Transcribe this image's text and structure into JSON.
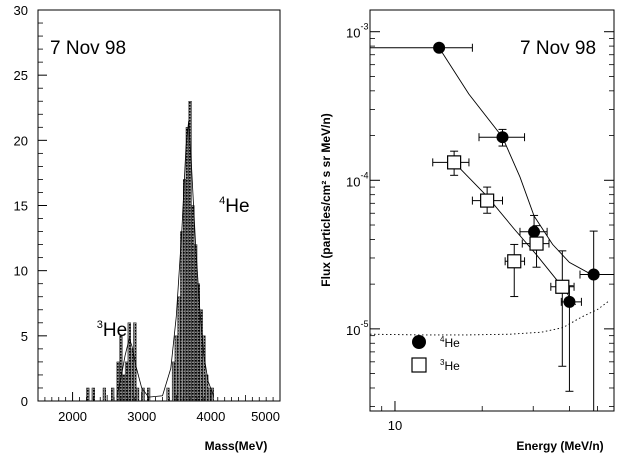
{
  "chart_data": [
    {
      "type": "bar",
      "subtype": "histogram",
      "annotation": "7 Nov 98",
      "xlabel": "Mass(MeV)",
      "ylabel": "",
      "xlim": [
        1500,
        5000
      ],
      "ylim": [
        0,
        30
      ],
      "xticks": [
        2000,
        3000,
        4000,
        5000
      ],
      "yticks": [
        0,
        5,
        10,
        15,
        20,
        25,
        30
      ],
      "bin_width": 40,
      "bins": [
        {
          "x": 2200,
          "count": 1
        },
        {
          "x": 2280,
          "count": 1
        },
        {
          "x": 2440,
          "count": 1
        },
        {
          "x": 2560,
          "count": 1
        },
        {
          "x": 2640,
          "count": 3
        },
        {
          "x": 2680,
          "count": 5
        },
        {
          "x": 2720,
          "count": 2
        },
        {
          "x": 2760,
          "count": 3
        },
        {
          "x": 2800,
          "count": 6
        },
        {
          "x": 2840,
          "count": 4
        },
        {
          "x": 2880,
          "count": 6
        },
        {
          "x": 2920,
          "count": 1
        },
        {
          "x": 3000,
          "count": 1
        },
        {
          "x": 3080,
          "count": 1
        },
        {
          "x": 3360,
          "count": 1
        },
        {
          "x": 3440,
          "count": 3
        },
        {
          "x": 3480,
          "count": 5
        },
        {
          "x": 3520,
          "count": 8
        },
        {
          "x": 3560,
          "count": 13
        },
        {
          "x": 3600,
          "count": 17
        },
        {
          "x": 3640,
          "count": 21
        },
        {
          "x": 3680,
          "count": 23
        },
        {
          "x": 3720,
          "count": 15
        },
        {
          "x": 3760,
          "count": 12
        },
        {
          "x": 3800,
          "count": 9
        },
        {
          "x": 3840,
          "count": 7
        },
        {
          "x": 3880,
          "count": 5
        },
        {
          "x": 3920,
          "count": 2
        },
        {
          "x": 3960,
          "count": 1
        },
        {
          "x": 4000,
          "count": 1
        }
      ],
      "fit": [
        [
          2640,
          0.3
        ],
        [
          2700,
          1.8
        ],
        [
          2760,
          3.5
        ],
        [
          2820,
          4.8
        ],
        [
          2860,
          4.2
        ],
        [
          2920,
          2.6
        ],
        [
          3000,
          1.0
        ],
        [
          3100,
          0.3
        ],
        [
          3300,
          0.4
        ],
        [
          3420,
          2.5
        ],
        [
          3500,
          6.5
        ],
        [
          3580,
          13
        ],
        [
          3640,
          19.5
        ],
        [
          3680,
          21.5
        ],
        [
          3720,
          18
        ],
        [
          3780,
          12
        ],
        [
          3840,
          7
        ],
        [
          3900,
          3.5
        ],
        [
          3960,
          1.5
        ],
        [
          4040,
          0.4
        ]
      ],
      "labels": [
        {
          "pre": "3",
          "text": "He",
          "x": 2350,
          "y": 5.0
        },
        {
          "pre": "4",
          "text": "He",
          "x": 4120,
          "y": 14.5
        }
      ]
    },
    {
      "type": "scatter",
      "annotation": "7 Nov 98",
      "xlabel": "Energy (MeV/n)",
      "ylabel": "Flux (particles/cm² s sr MeV/n)",
      "xscale": "log",
      "yscale": "log",
      "xlim": [
        8.2,
        57
      ],
      "ylim": [
        2.8e-06,
        0.0014
      ],
      "yticks": [
        {
          "value": 1e-05,
          "base": "10",
          "exp": "-5"
        },
        {
          "value": 0.0001,
          "base": "10",
          "exp": "-4"
        },
        {
          "value": 0.001,
          "base": "10",
          "exp": "-3"
        }
      ],
      "xticks": [
        {
          "value": 10,
          "label": "10"
        }
      ],
      "series": [
        {
          "name": "He",
          "name_pre": "4",
          "marker": "filled-circle",
          "points": [
            {
              "x": 14.2,
              "y": 0.00078,
              "xerr": [
                8.2,
                18.5
              ],
              "yerr": [
                0.00078,
                0.00078
              ]
            },
            {
              "x": 23.5,
              "y": 0.000195,
              "xerr": [
                19.5,
                28.0
              ],
              "yerr": [
                0.00017,
                0.00022
              ]
            },
            {
              "x": 30.2,
              "y": 4.5e-05,
              "xerr": [
                27.0,
                33.5
              ],
              "yerr": [
                3.4e-05,
                5.8e-05
              ]
            },
            {
              "x": 40.0,
              "y": 1.52e-05,
              "xerr": [
                37.5,
                44.0
              ],
              "yerr": [
                3.8e-06,
                1.95e-05
              ]
            },
            {
              "x": 48.5,
              "y": 2.32e-05,
              "xerr": [
                43.5,
                57.0
              ],
              "yerr": [
                2.8e-06,
                4.55e-05
              ]
            }
          ],
          "fit": [
            [
              14.2,
              0.00078
            ],
            [
              18,
              0.00038
            ],
            [
              23.5,
              0.000195
            ],
            [
              27,
              0.000105
            ],
            [
              30.2,
              5.75e-05
            ],
            [
              35,
              3.7e-05
            ],
            [
              40,
              2.8e-05
            ],
            [
              48.5,
              2.28e-05
            ]
          ]
        },
        {
          "name": "He",
          "name_pre": "3",
          "marker": "open-square",
          "points": [
            {
              "x": 16.0,
              "y": 0.000132,
              "xerr": [
                13.5,
                18.0
              ],
              "yerr": [
                0.000108,
                0.000157
              ]
            },
            {
              "x": 20.8,
              "y": 7.3e-05,
              "xerr": [
                18.5,
                23.5
              ],
              "yerr": [
                6e-05,
                9e-05
              ]
            },
            {
              "x": 25.8,
              "y": 2.85e-05,
              "xerr": [
                24.0,
                28.0
              ],
              "yerr": [
                1.65e-05,
                3.7e-05
              ]
            },
            {
              "x": 30.8,
              "y": 3.75e-05,
              "xerr": [
                27.5,
                34.0
              ],
              "yerr": [
                2.6e-05,
                4.95e-05
              ]
            },
            {
              "x": 37.8,
              "y": 1.92e-05,
              "xerr": [
                34.5,
                41.5
              ],
              "yerr": [
                5.6e-06,
                3.35e-05
              ]
            }
          ],
          "fit": [
            [
              16.0,
              0.000132
            ],
            [
              20.8,
              7.8e-05
            ],
            [
              25.8,
              4.7e-05
            ],
            [
              30.8,
              3.15e-05
            ],
            [
              37.8,
              1.92e-05
            ],
            [
              42,
              1.45e-05
            ]
          ]
        }
      ],
      "threshold_curve": [
        [
          8.2,
          9.2e-06
        ],
        [
          12,
          9.1e-06
        ],
        [
          18,
          9.1e-06
        ],
        [
          25,
          9.2e-06
        ],
        [
          32,
          9.5e-06
        ],
        [
          38,
          1.02e-05
        ],
        [
          44,
          1.2e-05
        ],
        [
          50,
          1.35e-05
        ],
        [
          55,
          1.55e-05
        ]
      ],
      "legend_position": "bottom-left"
    }
  ]
}
